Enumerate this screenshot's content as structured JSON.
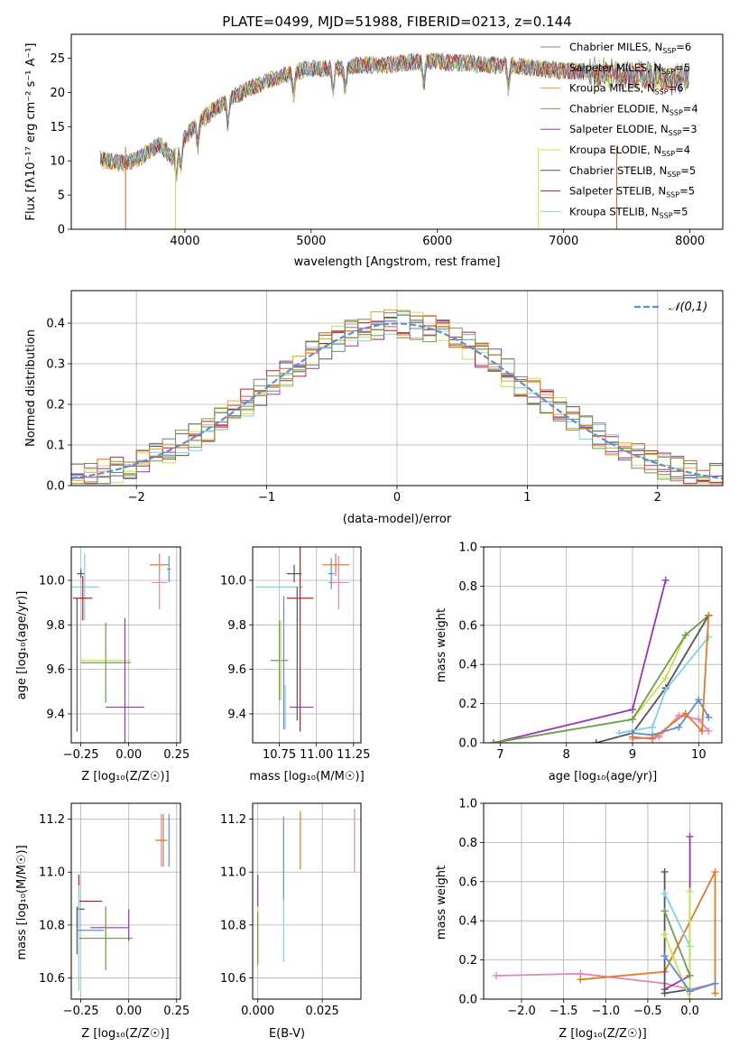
{
  "chart_data": [
    {
      "type": "line",
      "title": "PLATE=0499, MJD=51988, FIBERID=0213, z=0.144",
      "xlabel": "wavelength [Angstrom, rest frame]",
      "ylabel": "Flux [fλ10⁻¹⁷ erg cm⁻² s⁻¹ A⁻¹]",
      "xlim": [
        3100,
        8260
      ],
      "ylim": [
        0,
        28.5
      ],
      "xticks": [
        "4000",
        "5000",
        "6000",
        "7000",
        "8000"
      ],
      "yticks": [
        "0",
        "5",
        "10",
        "15",
        "20",
        "25"
      ],
      "legend_position": "top-right",
      "grid": false,
      "series": [
        {
          "name": "Chabrier MILES, N",
          "sub": "SSP",
          "suffix": "=6",
          "color": "#7f7f7f"
        },
        {
          "name": "Salpeter MILES, N",
          "sub": "SSP",
          "suffix": "=5",
          "color": "#d0612a"
        },
        {
          "name": "Kroupa MILES, N",
          "sub": "SSP",
          "suffix": "=6",
          "color": "#f0a128"
        },
        {
          "name": "Chabrier ELODIE, N",
          "sub": "SSP",
          "suffix": "=4",
          "color": "#6f9e50"
        },
        {
          "name": "Salpeter ELODIE, N",
          "sub": "SSP",
          "suffix": "=3",
          "color": "#9b35b5"
        },
        {
          "name": "Kroupa ELODIE, N",
          "sub": "SSP",
          "suffix": "=4",
          "color": "#cfe04d"
        },
        {
          "name": "Chabrier STELIB, N",
          "sub": "SSP",
          "suffix": "=5",
          "color": "#555555"
        },
        {
          "name": "Salpeter STELIB, N",
          "sub": "SSP",
          "suffix": "=5",
          "color": "#b3202a"
        },
        {
          "name": "Kroupa STELIB, N",
          "sub": "SSP",
          "suffix": "=5",
          "color": "#7fd2e3"
        }
      ],
      "continuum": {
        "x": [
          3330,
          3500,
          3650,
          3800,
          3900,
          4000,
          4100,
          4300,
          4500,
          4700,
          4860,
          5000,
          5200,
          5400,
          5600,
          5800,
          6000,
          6200,
          6400,
          6600,
          6800,
          7000,
          7200,
          7400,
          7600,
          7800,
          8000
        ],
        "y": [
          10.2,
          9.6,
          10.5,
          12.5,
          10.5,
          13.5,
          15.5,
          18.5,
          20.5,
          22.0,
          23.0,
          23.5,
          23.5,
          24.0,
          24.0,
          24.5,
          24.5,
          24.3,
          24.0,
          24.0,
          23.5,
          23.2,
          23.0,
          22.7,
          22.4,
          22.0,
          22.0
        ]
      }
    },
    {
      "type": "line",
      "xlabel": "(data-model)/error",
      "ylabel": "Normed distribution",
      "xlim": [
        -2.5,
        2.5
      ],
      "ylim": [
        0,
        0.48
      ],
      "xticks": [
        "−2",
        "−1",
        "0",
        "1",
        "2"
      ],
      "yticks": [
        "0.0",
        "0.1",
        "0.2",
        "0.3",
        "0.4"
      ],
      "grid": true,
      "legend_position": "top-right",
      "reference": {
        "label": "𝒩(0,1)",
        "mu": 0,
        "sigma": 1,
        "color": "#5b8fd6"
      },
      "bin_width": 0.1
    },
    {
      "type": "scatter",
      "xlabel": "Z [log₁₀(Z/Z☉)]",
      "ylabel": "age  [log₁₀(age/yr)]",
      "xlim": [
        -0.3,
        0.27
      ],
      "ylim": [
        9.27,
        10.15
      ],
      "xticks": [
        "−0.25",
        "0.00",
        "0.25"
      ],
      "yticks": [
        "9.4",
        "9.6",
        "9.8",
        "10.0"
      ],
      "grid": true
    },
    {
      "type": "scatter",
      "xlabel": "mass [log₁₀(M/M☉)]",
      "xlim": [
        10.57,
        11.3
      ],
      "ylim": [
        9.27,
        10.15
      ],
      "xticks": [
        "10.75",
        "11.00",
        "11.25"
      ],
      "yticks": [
        "9.4",
        "9.6",
        "9.8",
        "10.0"
      ],
      "grid": true
    },
    {
      "type": "line",
      "xlabel": "age  [log₁₀(age/yr)]",
      "ylabel": "mass weight",
      "xlim": [
        6.75,
        10.35
      ],
      "ylim": [
        0,
        1
      ],
      "xticks": [
        "7",
        "8",
        "9",
        "10"
      ],
      "yticks": [
        "0.0",
        "0.2",
        "0.4",
        "0.6",
        "0.8",
        "1.0"
      ],
      "grid": true,
      "series": [
        {
          "color": "#9b35b5",
          "x": [
            6.9,
            9.0,
            9.5
          ],
          "y": [
            0.0,
            0.17,
            0.83
          ]
        },
        {
          "color": "#cfe04d",
          "x": [
            6.9,
            9.0,
            9.5,
            9.8,
            10.15
          ],
          "y": [
            0.0,
            0.12,
            0.33,
            0.55,
            0.65
          ]
        },
        {
          "color": "#6f9e50",
          "x": [
            6.9,
            9.0,
            9.8,
            10.15
          ],
          "y": [
            0.0,
            0.12,
            0.55,
            0.65
          ]
        },
        {
          "color": "#555555",
          "x": [
            8.45,
            9.0,
            9.5,
            10.15
          ],
          "y": [
            0.0,
            0.05,
            0.28,
            0.65
          ]
        },
        {
          "color": "#7fd2e3",
          "x": [
            8.8,
            9.3,
            9.5,
            10.15
          ],
          "y": [
            0.05,
            0.08,
            0.27,
            0.54
          ]
        },
        {
          "color": "#e783b8",
          "x": [
            9.0,
            9.4,
            9.7,
            10.0,
            10.15
          ],
          "y": [
            0.02,
            0.03,
            0.14,
            0.12,
            0.06
          ]
        },
        {
          "color": "#5b8fd6",
          "x": [
            9.0,
            9.3,
            9.7,
            10.0,
            10.15
          ],
          "y": [
            0.05,
            0.04,
            0.08,
            0.22,
            0.13
          ]
        },
        {
          "color": "#e07b26",
          "x": [
            9.0,
            9.3,
            9.8,
            10.05,
            10.15
          ],
          "y": [
            0.03,
            0.02,
            0.15,
            0.06,
            0.65
          ]
        }
      ]
    },
    {
      "type": "scatter",
      "xlabel": "Z [log₁₀(Z/Z☉)]",
      "ylabel": "mass [log₁₀(M/M☉)]",
      "xlim": [
        -0.3,
        0.27
      ],
      "ylim": [
        10.52,
        11.26
      ],
      "xticks": [
        "−0.25",
        "0.00",
        "0.25"
      ],
      "yticks": [
        "10.6",
        "10.8",
        "11.0",
        "11.2"
      ],
      "grid": true
    },
    {
      "type": "scatter",
      "xlabel": "E(B-V)",
      "xlim": [
        -0.002,
        0.04
      ],
      "ylim": [
        10.52,
        11.26
      ],
      "xticks": [
        "0.000",
        "0.025"
      ],
      "yticks": [
        "10.6",
        "10.8",
        "11.0",
        "11.2"
      ],
      "grid": true
    },
    {
      "type": "line",
      "xlabel": "Z [log₁₀(Z/Z☉)]",
      "ylabel": "mass weight",
      "xlim": [
        -2.45,
        0.38
      ],
      "ylim": [
        0,
        1
      ],
      "xticks": [
        "−2.0",
        "−1.5",
        "−1.0",
        "−0.5",
        "0.0"
      ],
      "yticks": [
        "0.0",
        "0.2",
        "0.4",
        "0.6",
        "0.8",
        "1.0"
      ],
      "grid": true,
      "series": [
        {
          "color": "#e783b8",
          "x": [
            -2.3,
            -1.3,
            -0.3,
            0.0,
            0.3
          ],
          "y": [
            0.12,
            0.13,
            0.08,
            0.05,
            0.08
          ]
        },
        {
          "color": "#e07b26",
          "x": [
            -1.3,
            -0.3,
            0.3,
            0.3
          ],
          "y": [
            0.1,
            0.14,
            0.65,
            0.03
          ]
        },
        {
          "color": "#9b35b5",
          "x": [
            -0.3,
            0.0,
            0.0
          ],
          "y": [
            0.05,
            0.12,
            0.83
          ]
        },
        {
          "color": "#555555",
          "x": [
            -0.3,
            -0.3,
            0.0
          ],
          "y": [
            0.65,
            0.03,
            0.05
          ]
        },
        {
          "color": "#7fd2e3",
          "x": [
            -0.3,
            0.0,
            0.0
          ],
          "y": [
            0.54,
            0.27,
            0.05
          ]
        },
        {
          "color": "#cfe04d",
          "x": [
            -0.3,
            0.0,
            0.0
          ],
          "y": [
            0.33,
            0.0,
            0.55
          ]
        },
        {
          "color": "#6f9e50",
          "x": [
            -0.3,
            0.0
          ],
          "y": [
            0.45,
            0.12
          ]
        },
        {
          "color": "#5b8fd6",
          "x": [
            -0.3,
            0.0,
            0.3
          ],
          "y": [
            0.22,
            0.04,
            0.08
          ]
        }
      ]
    }
  ],
  "points": {
    "age_Z": [
      {
        "x": 0.16,
        "y": 10.07,
        "xe": 0.05,
        "ye": 0.05,
        "c": "#e07b26"
      },
      {
        "x": 0.16,
        "y": 9.99,
        "xe": 0.04,
        "ye": 0.12,
        "c": "#e783b8"
      },
      {
        "x": 0.21,
        "y": 10.05,
        "xe": 0.01,
        "ye": 0.06,
        "c": "#5b8fd6"
      },
      {
        "x": -0.25,
        "y": 10.03,
        "xe": 0.02,
        "ye": 0.02,
        "c": "#555555"
      },
      {
        "x": -0.23,
        "y": 9.97,
        "xe": 0.07,
        "ye": 0.15,
        "c": "#7fd2e3"
      },
      {
        "x": -0.24,
        "y": 9.92,
        "xe": 0.05,
        "ye": 0.1,
        "c": "#b3202a"
      },
      {
        "x": -0.27,
        "y": 9.62,
        "xe": 0.0,
        "ye": 0.3,
        "c": "#555555"
      },
      {
        "x": -0.12,
        "y": 9.64,
        "xe": 0.13,
        "ye": 0.0,
        "c": "#cfe04d"
      },
      {
        "x": -0.12,
        "y": 9.63,
        "xe": 0.13,
        "ye": 0.18,
        "c": "#6f9e50"
      },
      {
        "x": -0.02,
        "y": 9.43,
        "xe": 0.1,
        "ye": 0.4,
        "c": "#9b35b5"
      }
    ],
    "age_mass": [
      {
        "x": 11.13,
        "y": 10.07,
        "xe": 0.09,
        "ye": 0.05,
        "c": "#e07b26"
      },
      {
        "x": 11.15,
        "y": 9.99,
        "xe": 0.07,
        "ye": 0.12,
        "c": "#e783b8"
      },
      {
        "x": 11.1,
        "y": 10.03,
        "xe": 0.02,
        "ye": 0.07,
        "c": "#5b8fd6"
      },
      {
        "x": 10.85,
        "y": 10.03,
        "xe": 0.05,
        "ye": 0.04,
        "c": "#555555"
      },
      {
        "x": 10.75,
        "y": 9.97,
        "xe": 0.16,
        "ye": 0.0,
        "c": "#7fd2e3"
      },
      {
        "x": 10.89,
        "y": 9.92,
        "xe": 0.09,
        "ye": 0.6,
        "c": "#b3202a"
      },
      {
        "x": 10.87,
        "y": 9.67,
        "xe": 0.0,
        "ye": 0.3,
        "c": "#555555"
      },
      {
        "x": 10.78,
        "y": 9.63,
        "xe": 0.0,
        "ye": 0.3,
        "c": "#5b8fd6"
      },
      {
        "x": 10.75,
        "y": 9.64,
        "xe": 0.06,
        "ye": 0.18,
        "c": "#6f9e50"
      },
      {
        "x": 10.76,
        "y": 9.64,
        "xe": 0.0,
        "ye": 0.18,
        "c": "#cfe04d"
      },
      {
        "x": 10.9,
        "y": 9.43,
        "xe": 0.08,
        "ye": 0.0,
        "c": "#9b35b5"
      },
      {
        "x": 10.79,
        "y": 9.43,
        "xe": 0.0,
        "ye": 0.1,
        "c": "#7fd2e3"
      }
    ],
    "mass_Z": [
      {
        "x": 0.18,
        "y": 11.12,
        "xe": 0.02,
        "ye": 0.1,
        "c": "#e07b26"
      },
      {
        "x": 0.17,
        "y": 11.12,
        "xe": 0.03,
        "ye": 0.1,
        "c": "#e783b8"
      },
      {
        "x": 0.21,
        "y": 11.12,
        "xe": 0.0,
        "ye": 0.1,
        "c": "#5b8fd6"
      },
      {
        "x": 0.17,
        "y": 11.12,
        "xe": 0.03,
        "ye": 0.0,
        "c": "#e07b26"
      },
      {
        "x": -0.26,
        "y": 10.89,
        "xe": 0.0,
        "ye": 0.1,
        "c": "#b3202a"
      },
      {
        "x": -0.2,
        "y": 10.89,
        "xe": 0.06,
        "ye": 0.0,
        "c": "#b3202a"
      },
      {
        "x": -0.27,
        "y": 10.78,
        "xe": 0.0,
        "ye": 0.09,
        "c": "#555555"
      },
      {
        "x": -0.25,
        "y": 10.86,
        "xe": 0.02,
        "ye": 0.0,
        "c": "#555555"
      },
      {
        "x": -0.1,
        "y": 10.79,
        "xe": 0.1,
        "ye": 0.0,
        "c": "#9b35b5"
      },
      {
        "x": -0.12,
        "y": 10.75,
        "xe": 0.14,
        "ye": 0.12,
        "c": "#cfe04d"
      },
      {
        "x": -0.12,
        "y": 10.75,
        "xe": 0.14,
        "ye": 0.12,
        "c": "#6f9e50"
      },
      {
        "x": -0.26,
        "y": 10.75,
        "xe": 0.0,
        "ye": 0.2,
        "c": "#7fd2e3"
      },
      {
        "x": -0.2,
        "y": 10.78,
        "xe": 0.07,
        "ye": 0.0,
        "c": "#5b8fd6"
      },
      {
        "x": 0.0,
        "y": 10.8,
        "xe": 0.0,
        "ye": 0.06,
        "c": "#9b35b5"
      }
    ],
    "mass_EBV": [
      {
        "x": 0.01,
        "y": 11.05,
        "xe": 0.0,
        "ye": 0.16,
        "c": "#5b8fd6"
      },
      {
        "x": 0.0165,
        "y": 11.12,
        "xe": 0.0,
        "ye": 0.11,
        "c": "#e07b26"
      },
      {
        "x": 0.0375,
        "y": 11.12,
        "xe": 0.0,
        "ye": 0.12,
        "c": "#e783b8"
      },
      {
        "x": 0.0,
        "y": 10.75,
        "xe": 0.0,
        "ye": 0.12,
        "c": "#cfe04d"
      },
      {
        "x": 0.0,
        "y": 10.93,
        "xe": 0.0,
        "ye": 0.06,
        "c": "#9b35b5"
      },
      {
        "x": 0.0,
        "y": 10.75,
        "xe": 0.0,
        "ye": 0.1,
        "c": "#6f9e50"
      },
      {
        "x": 0.01,
        "y": 10.78,
        "xe": 0.0,
        "ye": 0.12,
        "c": "#7fd2e3"
      }
    ]
  }
}
